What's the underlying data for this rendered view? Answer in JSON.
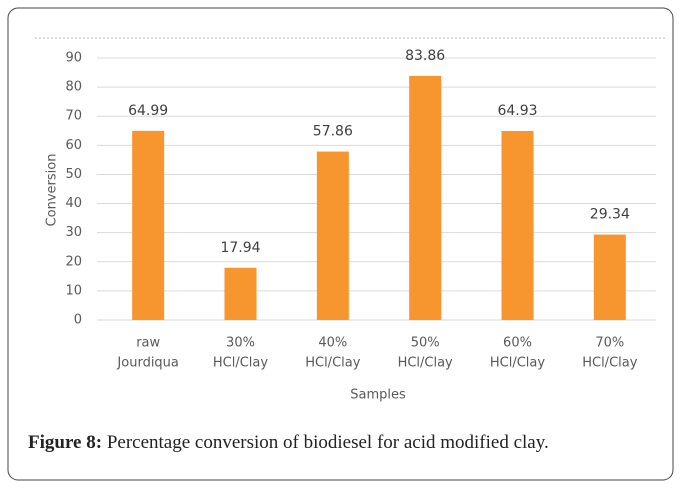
{
  "chart_data": {
    "type": "bar",
    "categories": [
      [
        "raw",
        "Jourdiqua"
      ],
      [
        "30%",
        "HCl/Clay"
      ],
      [
        "40%",
        "HCl/Clay"
      ],
      [
        "50%",
        "HCl/Clay"
      ],
      [
        "60%",
        "HCl/Clay"
      ],
      [
        "70%",
        "HCl/Clay"
      ]
    ],
    "values": [
      64.99,
      17.94,
      57.86,
      83.86,
      64.93,
      29.34
    ],
    "color": "#f7962f",
    "ylim": [
      0,
      90
    ],
    "yticks": [
      0,
      10,
      20,
      30,
      40,
      50,
      60,
      70,
      80,
      90
    ],
    "grid": true,
    "x_label": "Samples",
    "y_label": "Conversion"
  },
  "caption": {
    "label": "Figure 8:",
    "text": "Percentage conversion of biodiesel for acid modified clay."
  }
}
